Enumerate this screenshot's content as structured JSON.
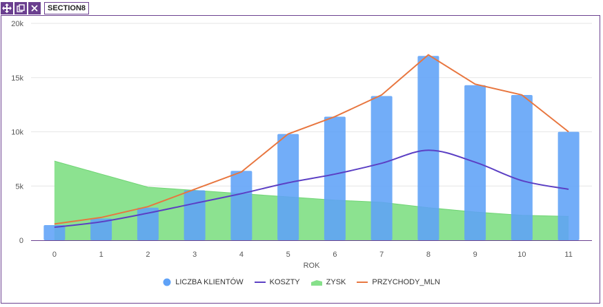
{
  "toolbar": {
    "section_label": "SECTION8"
  },
  "colors": {
    "clients": "#5fa2f7",
    "costs": "#5b3fc4",
    "profit": "#86e08a",
    "revenue": "#e8763f",
    "toolbar": "#6a3f8f"
  },
  "chart_data": {
    "type": "bar",
    "xlabel": "ROK",
    "ylabel": "",
    "x": [
      0,
      1,
      2,
      3,
      4,
      5,
      6,
      7,
      8,
      9,
      10,
      11
    ],
    "ylim": [
      0,
      20000
    ],
    "y_ticks": [
      "0",
      "5k",
      "10k",
      "15k",
      "20k"
    ],
    "y_tick_values": [
      0,
      5000,
      10000,
      15000,
      20000
    ],
    "grid": true,
    "legend_position": "bottom",
    "series": [
      {
        "name": "LICZBA KLIENTÓW",
        "type": "bar",
        "values": [
          1400,
          2000,
          3000,
          4600,
          6400,
          9800,
          11400,
          13300,
          17000,
          14300,
          13400,
          10000
        ]
      },
      {
        "name": "KOSZTY",
        "type": "line",
        "values": [
          1200,
          1700,
          2500,
          3400,
          4300,
          5300,
          6100,
          7100,
          8300,
          7200,
          5500,
          4700
        ]
      },
      {
        "name": "ZYSK",
        "type": "area",
        "values": [
          7300,
          6100,
          4900,
          4600,
          4300,
          4000,
          3700,
          3500,
          3000,
          2600,
          2300,
          2200
        ]
      },
      {
        "name": "PRZYCHODY_MLN",
        "type": "line",
        "values": [
          1500,
          2100,
          3100,
          4700,
          6300,
          9800,
          11400,
          13400,
          17100,
          14400,
          13400,
          10000
        ]
      }
    ]
  }
}
